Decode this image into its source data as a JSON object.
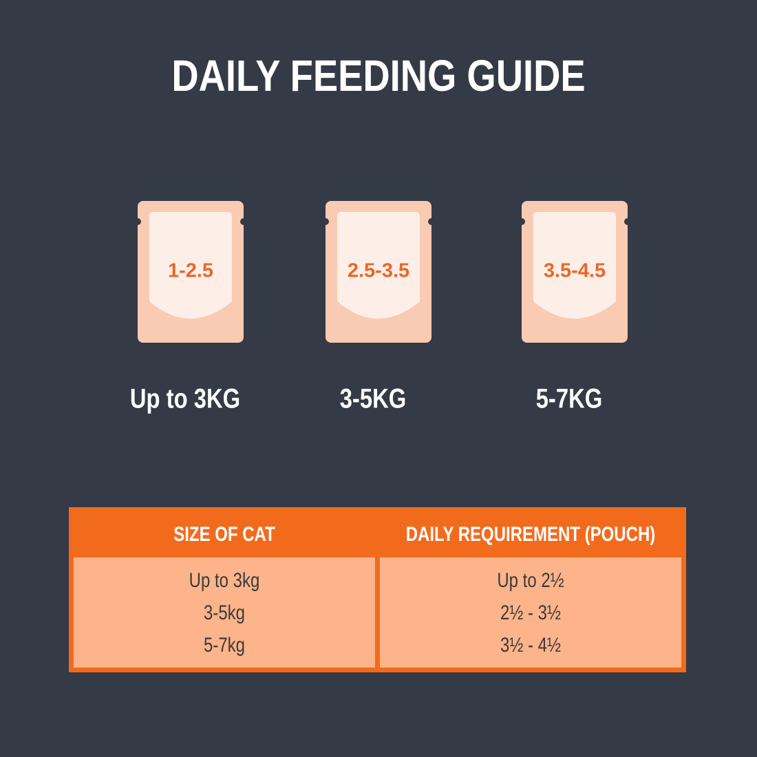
{
  "header": {
    "title": "DAILY FEEDING GUIDE"
  },
  "pouches": [
    {
      "amount": "1-2.5",
      "weight": "Up to 3KG"
    },
    {
      "amount": "2.5-3.5",
      "weight": "3-5KG"
    },
    {
      "amount": "3.5-4.5",
      "weight": "5-7KG"
    }
  ],
  "table": {
    "headers": [
      "SIZE OF CAT",
      "DAILY REQUIREMENT (POUCH)"
    ],
    "rows": [
      [
        "Up to 3kg",
        "Up to 2½"
      ],
      [
        "3-5kg",
        "2½ - 3½"
      ],
      [
        "5-7kg",
        "3½ - 4½"
      ]
    ]
  }
}
